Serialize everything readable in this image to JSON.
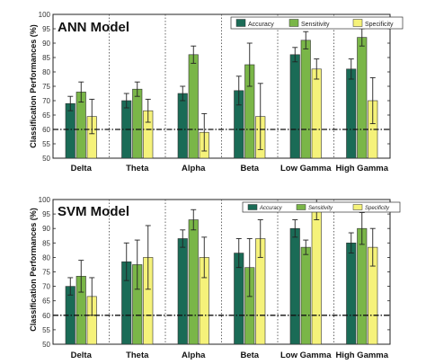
{
  "colors": {
    "accuracy": "#1a6b56",
    "sensitivity": "#7ab648",
    "specificity": "#f5f27a",
    "grid": "#444444",
    "threshold": "#111111"
  },
  "chart_data": [
    {
      "type": "bar",
      "title": "ANN Model",
      "ylabel": "Classification Performances (%)",
      "xlabel": "",
      "ylim": [
        50,
        100
      ],
      "yticks": [
        50,
        55,
        60,
        65,
        70,
        75,
        80,
        85,
        90,
        95,
        100
      ],
      "threshold": 60,
      "grid": "vertical dotted",
      "legend_position": "top-right",
      "categories": [
        "Delta",
        "Theta",
        "Alpha",
        "Beta",
        "Low Gamma",
        "High Gamma"
      ],
      "series": [
        {
          "name": "Accuracy",
          "values": [
            69,
            70,
            72.5,
            73.5,
            86,
            81
          ],
          "errors": [
            2.5,
            2.5,
            2.5,
            5,
            2.5,
            3.5
          ]
        },
        {
          "name": "Sensitivity",
          "values": [
            73,
            74,
            86,
            82.5,
            91,
            92
          ],
          "errors": [
            3.5,
            2.5,
            3,
            7.5,
            3,
            3
          ]
        },
        {
          "name": "Specificity",
          "values": [
            64.5,
            66.5,
            59,
            64.5,
            81,
            70
          ],
          "errors": [
            6,
            4,
            6.5,
            11.5,
            3.5,
            8
          ]
        }
      ]
    },
    {
      "type": "bar",
      "title": "SVM Model",
      "ylabel": "Classification Performances (%)",
      "xlabel": "",
      "ylim": [
        50,
        100
      ],
      "yticks": [
        50,
        55,
        60,
        65,
        70,
        75,
        80,
        85,
        90,
        95,
        100
      ],
      "threshold": 60,
      "grid": "vertical dotted",
      "legend_position": "top-right",
      "categories": [
        "Delta",
        "Theta",
        "Alpha",
        "Beta",
        "Low Gamma",
        "High Gamma"
      ],
      "series": [
        {
          "name": "Accuracy",
          "values": [
            70,
            78.5,
            86.5,
            81.5,
            90,
            85
          ],
          "errors": [
            3,
            6.5,
            3,
            5,
            3,
            3.5
          ]
        },
        {
          "name": "Sensitivity",
          "values": [
            73.5,
            77.5,
            93,
            76.5,
            83.5,
            90
          ],
          "errors": [
            5.5,
            8.5,
            3.5,
            10,
            2.5,
            5.5
          ]
        },
        {
          "name": "Specificity",
          "values": [
            66.5,
            80,
            80,
            86.5,
            96.5,
            83.5
          ],
          "errors": [
            6.5,
            11,
            7,
            6.5,
            3.5,
            6.5
          ]
        }
      ]
    }
  ]
}
